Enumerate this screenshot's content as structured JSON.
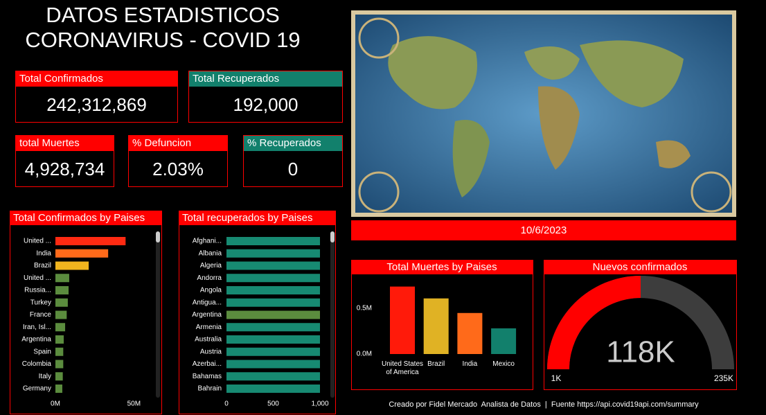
{
  "title": [
    "DATOS ESTADISTICOS",
    "CORONAVIRUS - COVID 19"
  ],
  "cards": [
    {
      "title": "Total Confirmados",
      "value": "242,312,869",
      "color": "#ff0000"
    },
    {
      "title": "Total Recuperados",
      "value": "192,000",
      "color": "#12806c"
    },
    {
      "title": "total Muertes",
      "value": "4,928,734",
      "color": "#ff0000"
    },
    {
      "title": "% Defuncion",
      "value": "2.03%",
      "color": "#ff0000"
    },
    {
      "title": "% Recuperados",
      "value": "0",
      "color": "#12806c"
    }
  ],
  "date": "10/6/2023",
  "footer": "Creado por Fidel Mercado  Analista de Datos  |  Fuente https://api.covid19api.com/summary",
  "chart_data": [
    {
      "type": "hbar",
      "title": "Total Confirmados by Paises",
      "categories": [
        "United ...",
        "India",
        "Brazil",
        "United ...",
        "Russia...",
        "Turkey",
        "France",
        "Iran, Isl...",
        "Argentina",
        "Spain",
        "Colombia",
        "Italy",
        "Germany"
      ],
      "values": [
        44700000,
        33600000,
        21200000,
        8800000,
        8400000,
        7900000,
        7200000,
        6200000,
        5300000,
        5000000,
        5000000,
        4700000,
        4400000
      ],
      "colors": [
        "#ff2a12",
        "#ff6a1a",
        "#f0b41e",
        "#5b8c3e",
        "#5b8c3e",
        "#5b8c3e",
        "#5b8c3e",
        "#5b8c3e",
        "#5b8c3e",
        "#5b8c3e",
        "#5b8c3e",
        "#5b8c3e",
        "#5b8c3e"
      ],
      "xlim": [
        0,
        60000000
      ],
      "xticks": [
        {
          "value": 0,
          "label": "0M"
        },
        {
          "value": 50000000,
          "label": "50M"
        }
      ]
    },
    {
      "type": "hbar",
      "title": "Total recuperados by Paises",
      "categories": [
        "Afghani...",
        "Albania",
        "Algeria",
        "Andorra",
        "Angola",
        "Antigua...",
        "Argentina",
        "Armenia",
        "Australia",
        "Austria",
        "Azerbai...",
        "Bahamas",
        "Bahrain"
      ],
      "values": [
        1000,
        1000,
        1000,
        1000,
        1000,
        1000,
        1000,
        1000,
        1000,
        1000,
        1000,
        1000,
        1000
      ],
      "colors": [
        "#178a72",
        "#178a72",
        "#178a72",
        "#178a72",
        "#178a72",
        "#178a72",
        "#5b8c3e",
        "#178a72",
        "#178a72",
        "#178a72",
        "#178a72",
        "#178a72",
        "#178a72"
      ],
      "xlim": [
        0,
        1000
      ],
      "xticks": [
        0,
        500,
        {
          "value": 1000,
          "label": "1,000"
        }
      ]
    },
    {
      "type": "bar",
      "title": "Total Muertes by Paises",
      "categories": [
        "United States of America",
        "Brazil",
        "India",
        "Mexico"
      ],
      "values": [
        735000,
        606000,
        447000,
        280000
      ],
      "colors": [
        "#ff1a0a",
        "#e0b224",
        "#ff6a1a",
        "#12806c"
      ],
      "ylim": [
        0,
        800000
      ],
      "yticks": [
        {
          "value": 0,
          "label": "0.0M"
        },
        {
          "value": 500000,
          "label": "0.5M"
        }
      ]
    },
    {
      "type": "gauge",
      "title": "Nuevos confirmados",
      "values": [
        118000
      ],
      "value_labels": [
        "118K"
      ],
      "color": "#ff0000",
      "track_color": "#3d3d3d",
      "ylim": [
        1000,
        235000
      ],
      "yticks": [
        {
          "value": 1000,
          "label": "1K"
        },
        {
          "value": 235000,
          "label": "235K"
        }
      ]
    }
  ]
}
